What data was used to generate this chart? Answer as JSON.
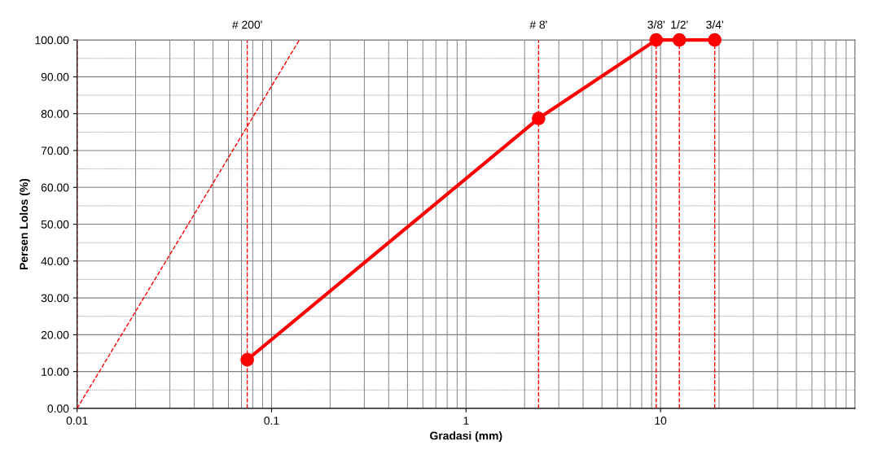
{
  "chart_data": {
    "type": "line",
    "xlabel": "Gradasi (mm)",
    "ylabel": "Persen Lolos (%)",
    "x": [
      0.075,
      2.36,
      9.5,
      12.5,
      19
    ],
    "series": [
      {
        "color": "#ff0000",
        "values": [
          13.2,
          78.7,
          100,
          100,
          100
        ],
        "marker": "circle",
        "line_style": "solid"
      },
      {
        "color": "#ff0000",
        "x": [
          0.01,
          0.139
        ],
        "values": [
          0,
          100
        ],
        "marker": "none",
        "line_style": "dashed"
      }
    ],
    "log": "x",
    "xlim": [
      0.01,
      100
    ],
    "xticks": [
      0.01,
      0.1,
      1,
      10
    ],
    "ylim": [
      0,
      100
    ],
    "yticks": [
      {
        "value": 0,
        "label": "0.00"
      },
      {
        "value": 10,
        "label": "10.00"
      },
      {
        "value": 20,
        "label": "20.00"
      },
      {
        "value": 30,
        "label": "30.00"
      },
      {
        "value": 40,
        "label": "40.00"
      },
      {
        "value": 50,
        "label": "50.00"
      },
      {
        "value": 60,
        "label": "60.00"
      },
      {
        "value": 70,
        "label": "70.00"
      },
      {
        "value": 80,
        "label": "80.00"
      },
      {
        "value": 90,
        "label": "90.00"
      },
      {
        "value": 100,
        "label": "100.00"
      }
    ],
    "grid": true,
    "ref_lines": [
      {
        "axis": "x",
        "value": 0.01,
        "color": "#ff0000",
        "line_style": "dashed"
      },
      {
        "axis": "x",
        "value": 0.075,
        "color": "#ff0000",
        "line_style": "dashed"
      },
      {
        "axis": "x",
        "value": 2.36,
        "color": "#ff0000",
        "line_style": "dashed"
      },
      {
        "axis": "x",
        "value": 9.5,
        "color": "#ff0000",
        "line_style": "dashed"
      },
      {
        "axis": "x",
        "value": 12.5,
        "color": "#ff0000",
        "line_style": "dashed"
      },
      {
        "axis": "x",
        "value": 19,
        "color": "#ff0000",
        "line_style": "dashed"
      }
    ],
    "annotations": [
      {
        "text": "# 200'",
        "x": 0.075,
        "y": 100
      },
      {
        "text": "# 8'",
        "x": 2.36,
        "y": 100
      },
      {
        "text": "3/8'",
        "x": 9.5,
        "y": 100
      },
      {
        "text": "1/2'",
        "x": 12.5,
        "y": 100
      },
      {
        "text": "3/4'",
        "x": 19,
        "y": 100
      }
    ]
  }
}
